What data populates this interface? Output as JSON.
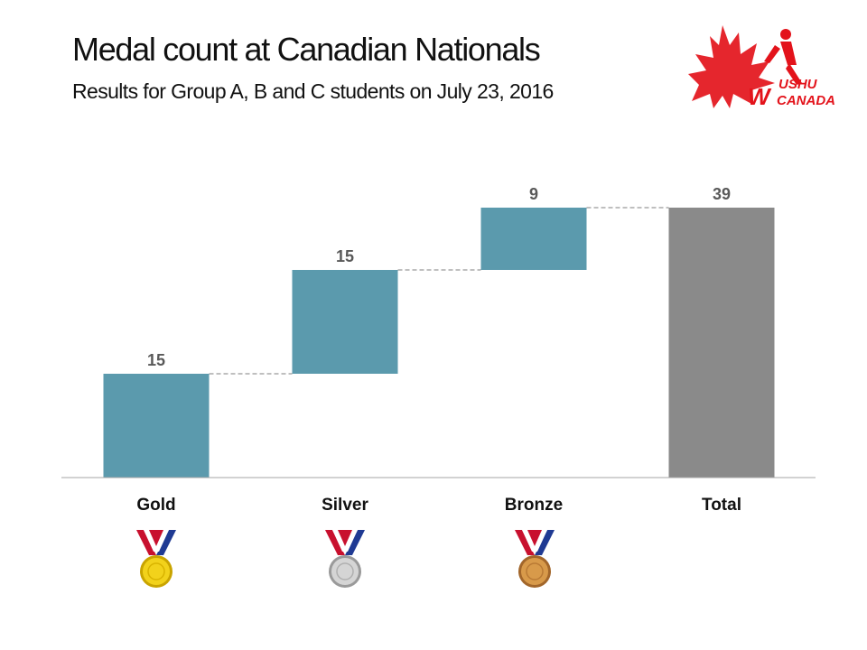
{
  "title": "Medal count at Canadian Nationals",
  "subtitle": "Results for Group A, B and C students on July 23, 2016",
  "logo": {
    "text_top": "USHU",
    "text_bottom": "CANADA",
    "letter": "W",
    "colors": {
      "red": "#e3131b"
    }
  },
  "colors": {
    "step_bar": "#5b9aad",
    "total_bar": "#8a8a8a",
    "label": "#595959",
    "axis": "#a6a6a6",
    "connector": "#7f7f7f"
  },
  "chart_data": {
    "type": "bar",
    "subtype": "waterfall",
    "categories": [
      "Gold",
      "Silver",
      "Bronze",
      "Total"
    ],
    "values": [
      15,
      15,
      9,
      39
    ],
    "data_labels": [
      "15",
      "15",
      "9",
      "39"
    ],
    "total_index": 3,
    "ylim": [
      0,
      39
    ],
    "title": "",
    "xlabel": "",
    "ylabel": "",
    "grid": false,
    "legend": "none",
    "connectors": true
  },
  "medals": [
    {
      "name": "gold",
      "face": "#f2d21b",
      "rim": "#c9a400"
    },
    {
      "name": "silver",
      "face": "#d5d5d5",
      "rim": "#9a9a9a"
    },
    {
      "name": "bronze",
      "face": "#d89a4a",
      "rim": "#a2662a"
    }
  ]
}
